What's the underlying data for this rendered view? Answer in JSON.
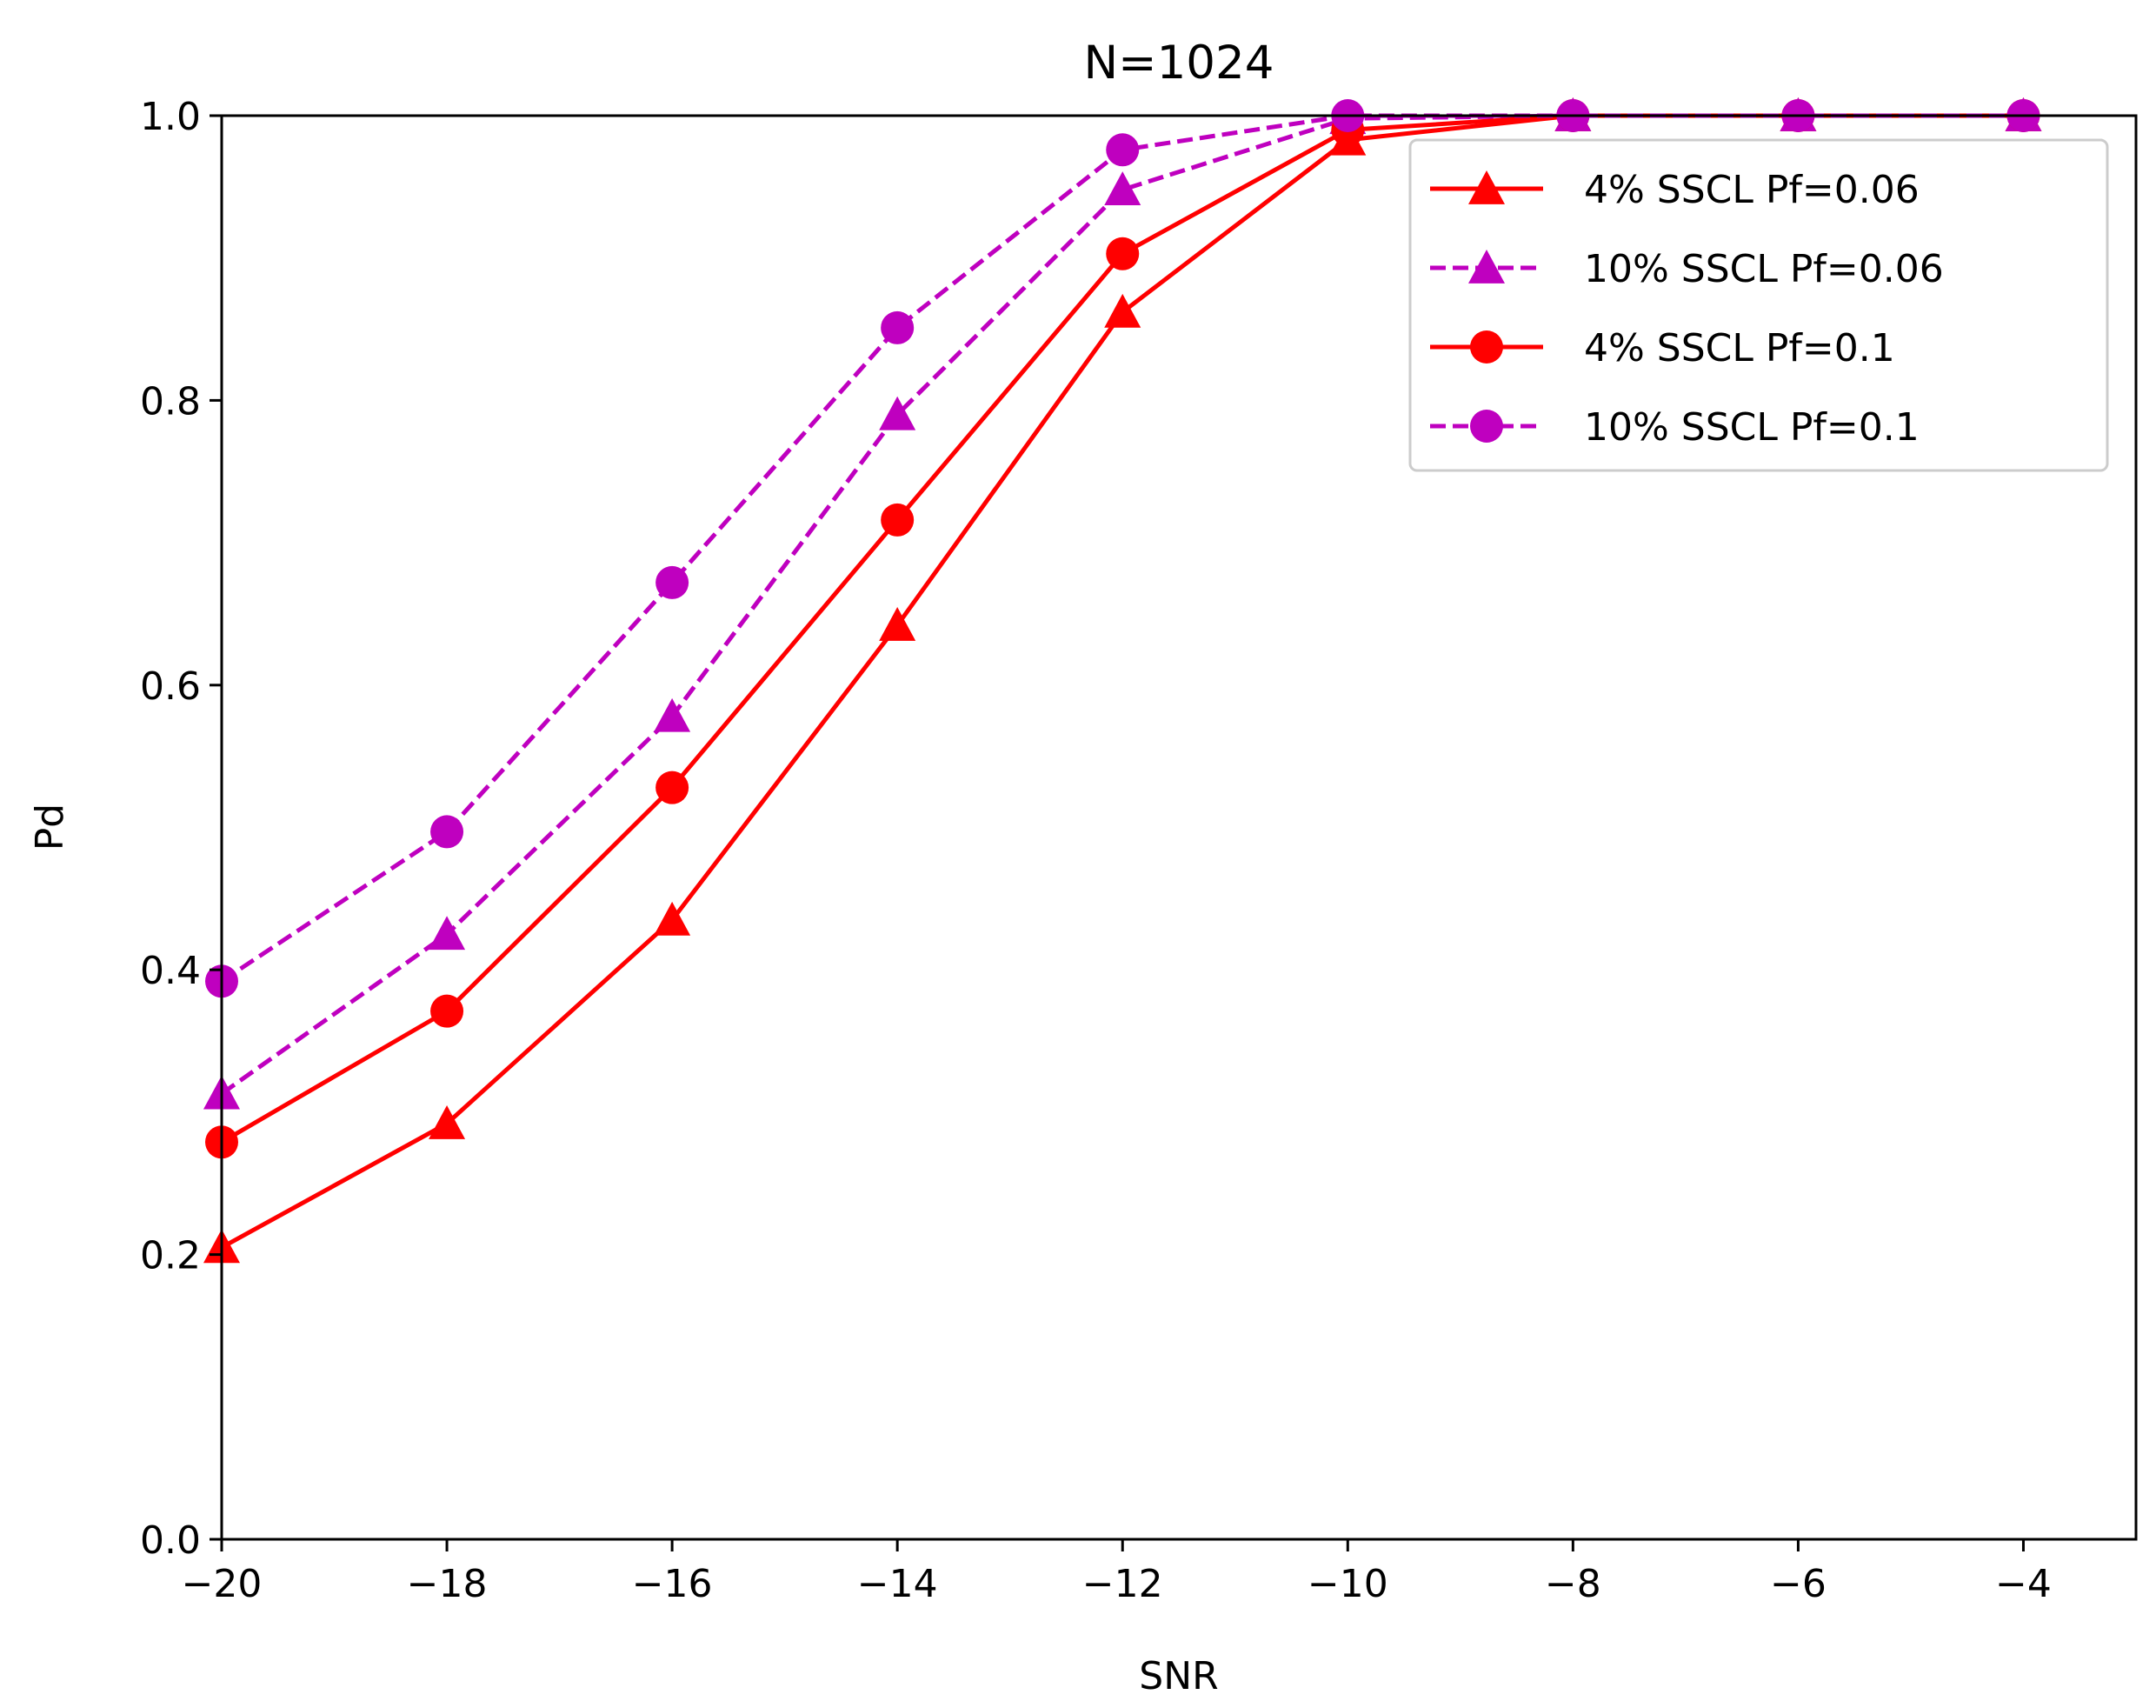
{
  "chart_data": {
    "type": "line",
    "title": "N=1024",
    "xlabel": "SNR",
    "ylabel": "Pd",
    "xlim": [
      -20,
      -3
    ],
    "ylim": [
      0,
      1.0
    ],
    "x": [
      -20,
      -18,
      -16,
      -14,
      -12,
      -10,
      -8,
      -6,
      -4
    ],
    "xticks": [
      -20,
      -18,
      -16,
      -14,
      -12,
      -10,
      -8,
      -6,
      -4
    ],
    "xtick_labels": [
      "−20",
      "−18",
      "−16",
      "−14",
      "−12",
      "−10",
      "−8",
      "−6",
      "−4"
    ],
    "yticks": [
      0.0,
      0.2,
      0.4,
      0.6,
      0.8,
      1.0
    ],
    "ytick_labels": [
      "0.0",
      "0.2",
      "0.4",
      "0.6",
      "0.8",
      "1.0"
    ],
    "grid": false,
    "legend_position": "top-right",
    "series": [
      {
        "name": "4% SSCL Pf=0.06",
        "color": "#ff0000",
        "linestyle": "solid",
        "marker": "triangle",
        "values": [
          0.205,
          0.292,
          0.435,
          0.642,
          0.862,
          0.983,
          1.0,
          1.0,
          1.0
        ]
      },
      {
        "name": "10% SSCL Pf=0.06",
        "color": "#bf00bf",
        "linestyle": "dashed",
        "marker": "triangle",
        "values": [
          0.313,
          0.425,
          0.578,
          0.79,
          0.948,
          0.998,
          1.0,
          1.0,
          1.0
        ]
      },
      {
        "name": "4% SSCL Pf=0.1",
        "color": "#ff0000",
        "linestyle": "solid",
        "marker": "circle",
        "values": [
          0.279,
          0.371,
          0.528,
          0.716,
          0.903,
          0.99,
          1.0,
          1.0,
          1.0
        ]
      },
      {
        "name": "10% SSCL Pf=0.1",
        "color": "#bf00bf",
        "linestyle": "dashed",
        "marker": "circle",
        "values": [
          0.392,
          0.497,
          0.672,
          0.851,
          0.976,
          1.0,
          1.0,
          1.0,
          1.0
        ]
      }
    ]
  }
}
